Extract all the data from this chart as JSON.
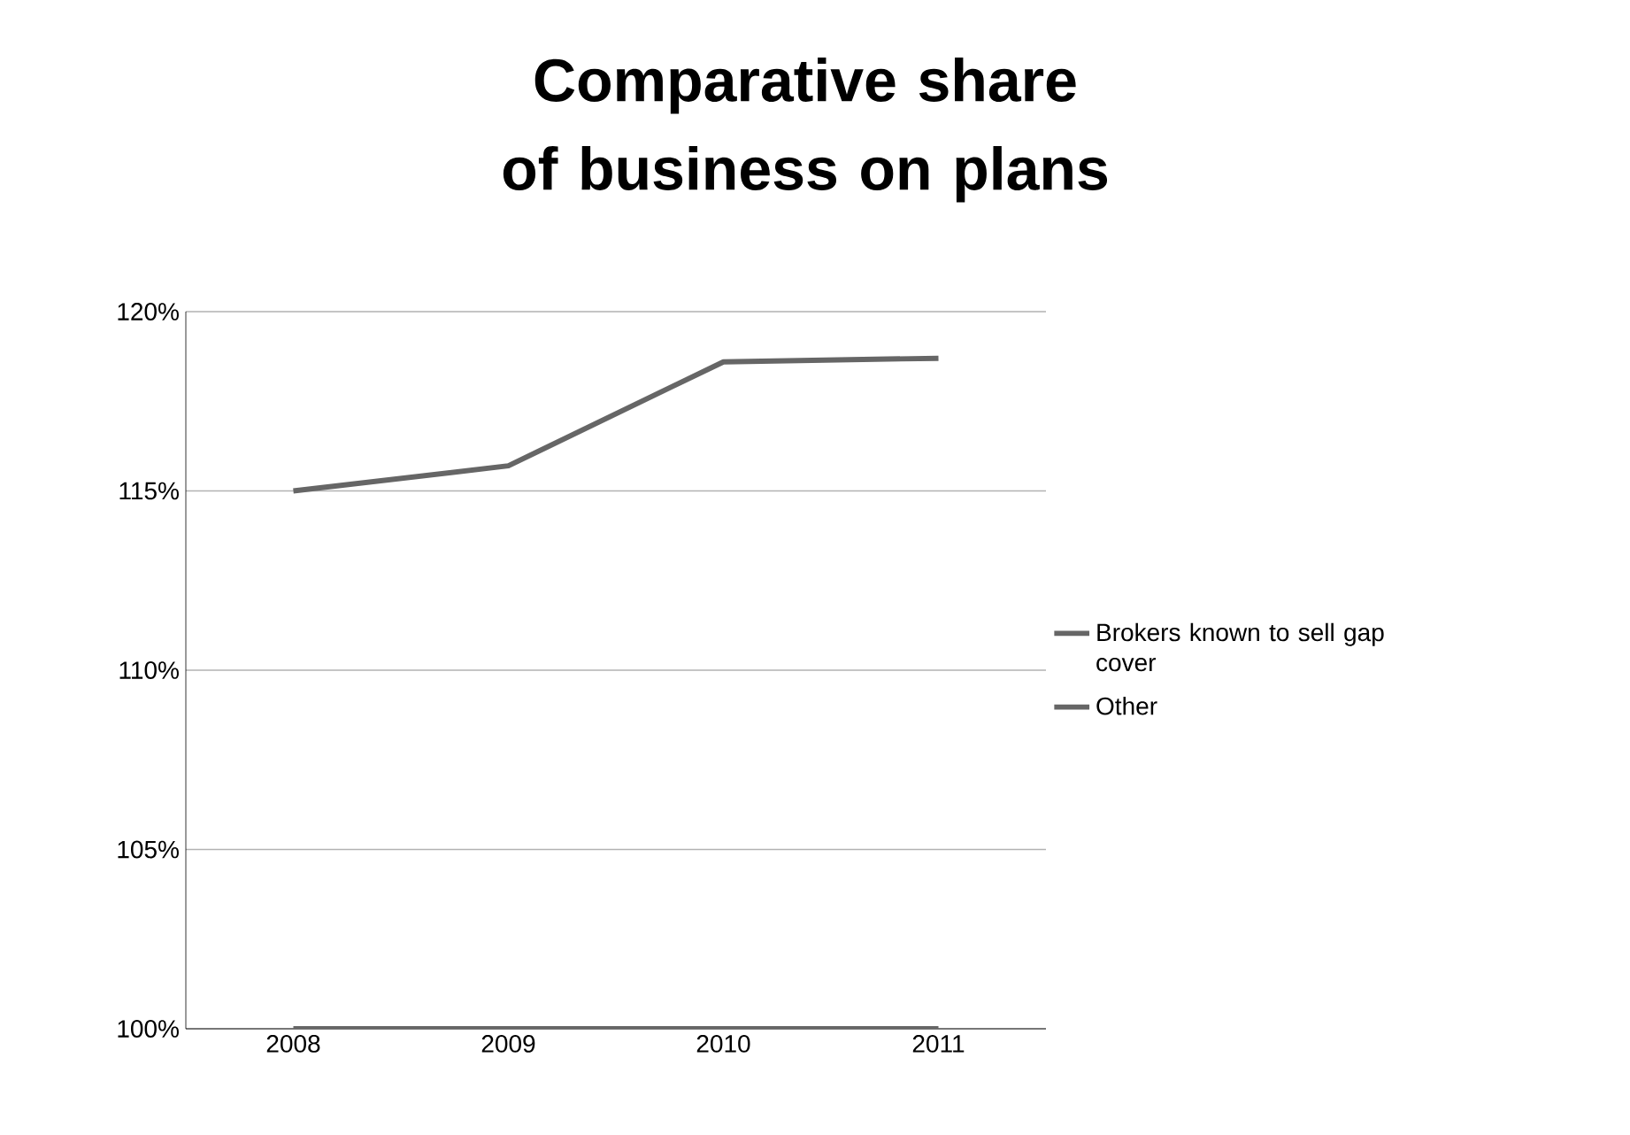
{
  "chart_data": {
    "type": "line",
    "title": "Comparative share of business on plans",
    "categories": [
      "2008",
      "2009",
      "2010",
      "2011"
    ],
    "series": [
      {
        "name": "Brokers known to sell gap cover",
        "color": "#666666",
        "values": [
          115.0,
          115.7,
          118.6,
          118.7
        ]
      },
      {
        "name": "Other",
        "color": "#666666",
        "values": [
          100,
          100,
          100,
          100
        ]
      }
    ],
    "ylim": [
      100,
      120
    ],
    "yticks": [
      {
        "value": 100,
        "label": "100%"
      },
      {
        "value": 105,
        "label": "105%"
      },
      {
        "value": 110,
        "label": "110%"
      },
      {
        "value": 115,
        "label": "115%"
      },
      {
        "value": 120,
        "label": "120%"
      }
    ],
    "grid": "y",
    "legend": "right",
    "marker": "none",
    "line_style": "solid"
  }
}
